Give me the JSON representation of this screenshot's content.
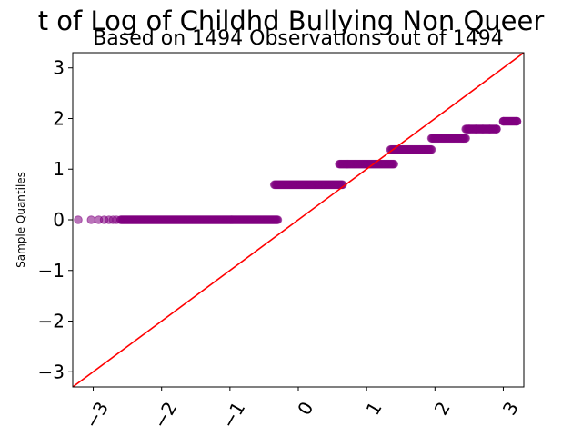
{
  "chart_data": {
    "type": "scatter",
    "title": "t of Log of Childhd Bullying Non Queer",
    "subtitle": "Based on 1494 Observations out of 1494",
    "xlabel": "",
    "ylabel": "Sample Quantiles",
    "xlim": [
      -3.3,
      3.3
    ],
    "ylim": [
      -3.3,
      3.3
    ],
    "x_ticks": [
      -3,
      -2,
      -1,
      0,
      1,
      2,
      3
    ],
    "x_tick_labels": [
      "−3",
      "−2",
      "−1",
      "0",
      "1",
      "2",
      "3"
    ],
    "y_ticks": [
      -3,
      -2,
      -1,
      0,
      1,
      2,
      3
    ],
    "y_tick_labels": [
      "−3",
      "−2",
      "−1",
      "0",
      "1",
      "2",
      "3"
    ],
    "grid": false,
    "point_color": "#800080",
    "line_color": "#ff0000",
    "reference_line": {
      "slope": 1,
      "intercept": 0
    },
    "series": [
      {
        "values_by_level": [
          {
            "y": 0.0,
            "x_range": [
              -2.6,
              -0.3
            ]
          },
          {
            "y": 0.693,
            "x_range": [
              -0.35,
              0.65
            ]
          },
          {
            "y": 1.099,
            "x_range": [
              0.6,
              1.4
            ]
          },
          {
            "y": 1.386,
            "x_range": [
              1.35,
              1.95
            ]
          },
          {
            "y": 1.609,
            "x_range": [
              1.95,
              2.45
            ]
          },
          {
            "y": 1.792,
            "x_range": [
              2.45,
              2.9
            ]
          },
          {
            "y": 1.946,
            "x_range": [
              3.0,
              3.2
            ]
          }
        ],
        "isolated_points": [
          {
            "x": -3.22,
            "y": 0.0
          },
          {
            "x": -3.03,
            "y": 0.0
          },
          {
            "x": -2.92,
            "y": 0.0
          },
          {
            "x": -2.84,
            "y": 0.0
          },
          {
            "x": -2.77,
            "y": 0.0
          },
          {
            "x": -2.71,
            "y": 0.0
          },
          {
            "x": -2.66,
            "y": 0.0
          },
          {
            "x": 2.5,
            "y": 1.792
          },
          {
            "x": 2.6,
            "y": 1.792
          },
          {
            "x": 2.7,
            "y": 1.792
          },
          {
            "x": 2.8,
            "y": 1.792
          },
          {
            "x": 2.9,
            "y": 1.792
          },
          {
            "x": 3.0,
            "y": 1.946
          },
          {
            "x": 3.2,
            "y": 1.946
          }
        ]
      }
    ]
  }
}
